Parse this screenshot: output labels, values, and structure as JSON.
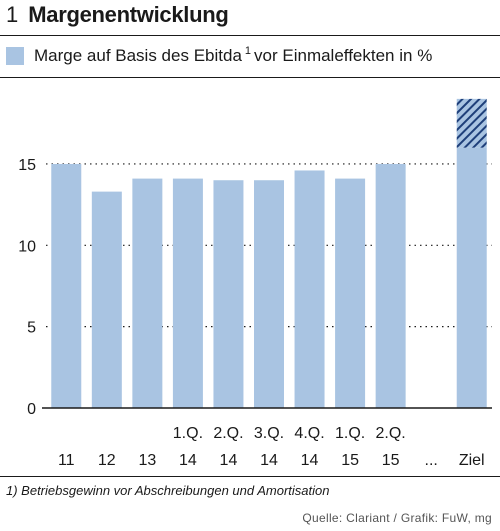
{
  "header": {
    "number": "1",
    "title": "Margenentwicklung"
  },
  "legend": {
    "label_main": "Marge auf Basis des Ebitda",
    "footnote_mark": "1",
    "label_rest": "vor Einmaleffekten in %"
  },
  "footnote": "1) Betriebsgewinn vor Abschreibungen und Amortisation",
  "source": "Quelle: Clariant / Grafik: FuW, mg",
  "colors": {
    "bar": "#a9c4e2",
    "hatch": "#1e3f7a",
    "axis": "#1a1a1a",
    "grid": "#1a1a1a"
  },
  "chart_data": {
    "type": "bar",
    "series": [
      {
        "name": "Marge auf Basis des Ebitda vor Einmaleffekten in %",
        "values": [
          15,
          13.3,
          14.1,
          14.1,
          14,
          14,
          14.6,
          14.1,
          15,
          null,
          16
        ]
      }
    ],
    "categories": [
      {
        "top": "",
        "bottom": "11"
      },
      {
        "top": "",
        "bottom": "12"
      },
      {
        "top": "",
        "bottom": "13"
      },
      {
        "top": "1.Q.",
        "bottom": "14"
      },
      {
        "top": "2.Q.",
        "bottom": "14"
      },
      {
        "top": "3.Q.",
        "bottom": "14"
      },
      {
        "top": "4.Q.",
        "bottom": "14"
      },
      {
        "top": "1.Q.",
        "bottom": "15"
      },
      {
        "top": "2.Q.",
        "bottom": "15"
      },
      {
        "top": "",
        "bottom": "..."
      },
      {
        "top": "",
        "bottom": "Ziel"
      }
    ],
    "target_range": [
      16,
      19
    ],
    "yticks": [
      0,
      5,
      10,
      15
    ],
    "ylim": [
      0,
      19.3
    ],
    "grid": "dotted horizontal at y ticks"
  }
}
